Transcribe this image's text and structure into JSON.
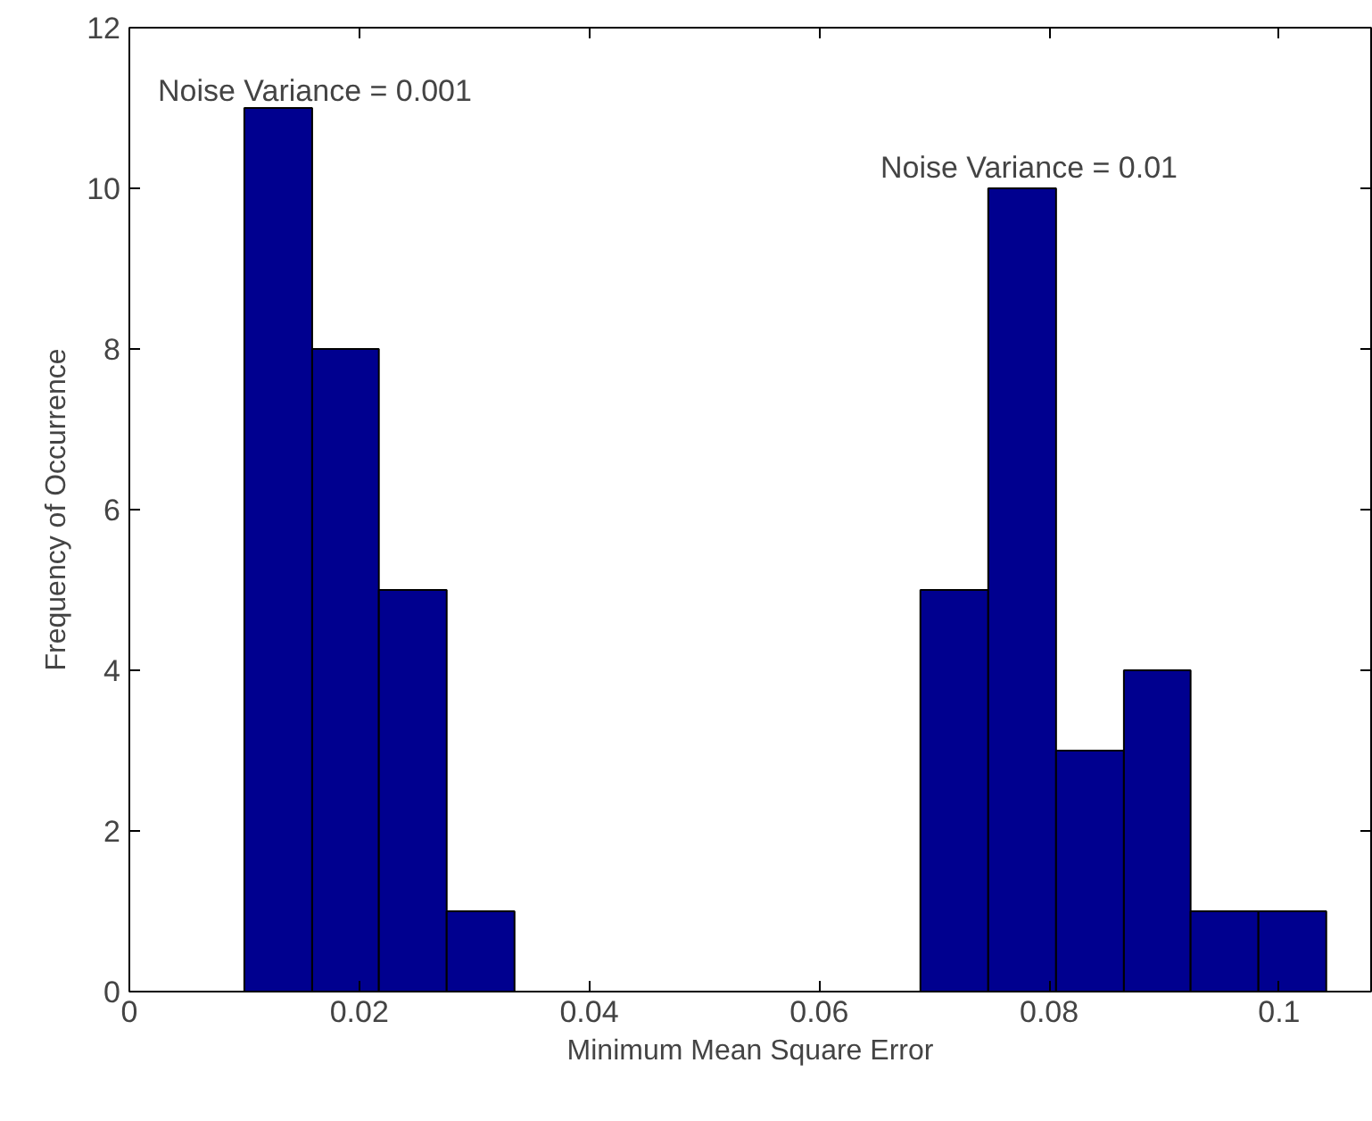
{
  "chart_data": {
    "type": "histogram",
    "xlabel": "Minimum Mean Square Error",
    "ylabel": "Frequency of Occurrence",
    "bins": [
      0.01,
      0.0159,
      0.0217,
      0.0276,
      0.0335,
      0.0688,
      0.0747,
      0.0806,
      0.0865,
      0.0923,
      0.0982,
      0.1041
    ],
    "values": [
      11,
      8,
      5,
      1,
      0,
      5,
      10,
      3,
      4,
      1,
      1
    ],
    "color": "#00008f",
    "xlim": [
      0,
      0.108
    ],
    "xticks": [
      0,
      0.02,
      0.04,
      0.06,
      0.08,
      0.1
    ],
    "ylim": [
      0,
      12
    ],
    "yticks": [
      0,
      2,
      4,
      6,
      8,
      10,
      12
    ],
    "grid": false,
    "annotations": [
      "Noise Variance = 0.001",
      "Noise Variance = 0.01"
    ]
  }
}
